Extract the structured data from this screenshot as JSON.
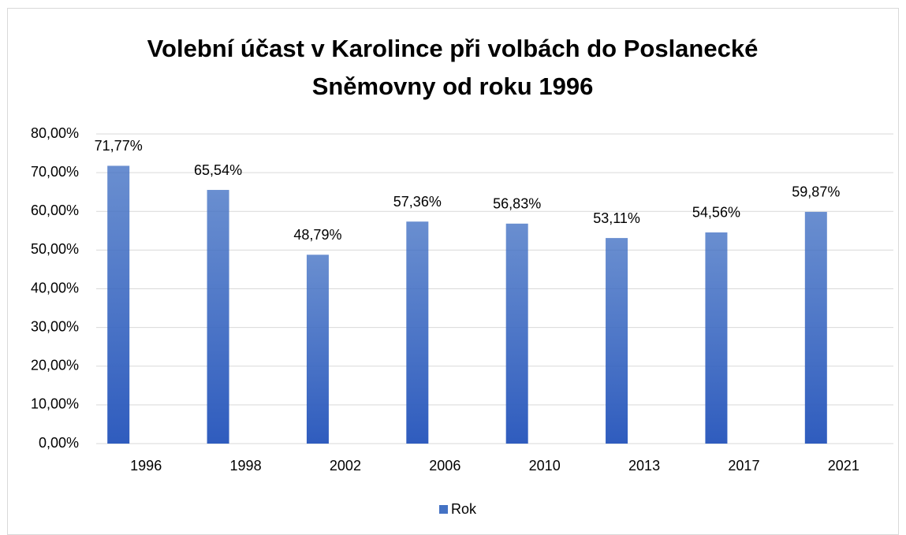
{
  "chart_data": {
    "type": "bar",
    "title": "Volební účast v Karolince při volbách do Poslanecké Sněmovny od roku 1996",
    "categories": [
      "1996",
      "1998",
      "2002",
      "2006",
      "2010",
      "2013",
      "2017",
      "2021"
    ],
    "series": [
      {
        "name": "Rok",
        "color": "#4472c4",
        "values": [
          71.77,
          65.54,
          48.79,
          57.36,
          56.83,
          53.11,
          54.56,
          59.87
        ],
        "value_labels": [
          "71,77%",
          "65,54%",
          "48,79%",
          "57,36%",
          "56,83%",
          "53,11%",
          "54,56%",
          "59,87%"
        ]
      }
    ],
    "ylim": [
      0,
      80
    ],
    "yticks": [
      {
        "value": 0,
        "label": "0,00%"
      },
      {
        "value": 10,
        "label": "10,00%"
      },
      {
        "value": 20,
        "label": "20,00%"
      },
      {
        "value": 30,
        "label": "30,00%"
      },
      {
        "value": 40,
        "label": "40,00%"
      },
      {
        "value": 50,
        "label": "50,00%"
      },
      {
        "value": 60,
        "label": "60,00%"
      },
      {
        "value": 70,
        "label": "70,00%"
      },
      {
        "value": 80,
        "label": "80,00%"
      }
    ],
    "grid": true,
    "legend": "bottom"
  }
}
